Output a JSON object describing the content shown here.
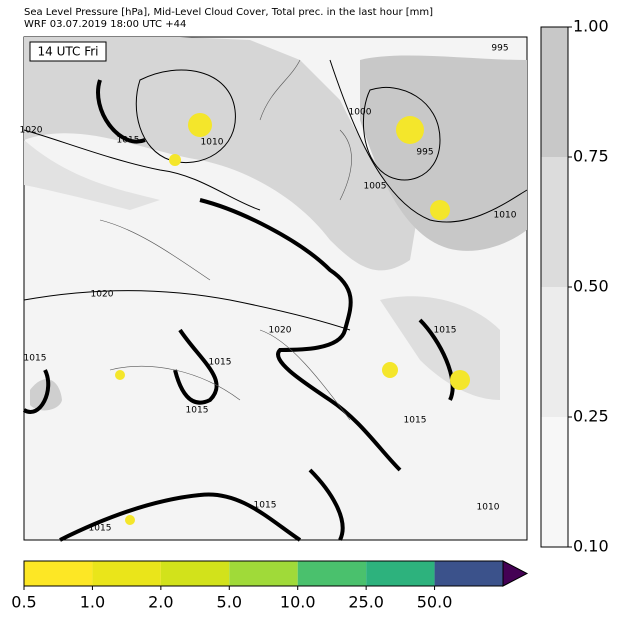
{
  "header": {
    "line1": "Sea Level Pressure [hPa], Mid-Level Cloud Cover, Total prec. in the last hour [mm]",
    "line2": "WRF 03.07.2019 18:00 UTC +44"
  },
  "map": {
    "time_label": "14 UTC Fri",
    "isobar_labels": [
      "995",
      "1000",
      "995",
      "1005",
      "1010",
      "1020",
      "1015",
      "1010",
      "1020",
      "1015",
      "1020",
      "1015",
      "1015",
      "1015",
      "1015",
      "1015",
      "1010",
      "1015"
    ]
  },
  "cloud_colorbar": {
    "ticks": [
      "1.00",
      "0.75",
      "0.50",
      "0.25",
      "0.10"
    ],
    "colors": [
      "#c8c8c8",
      "#dcdcdc",
      "#ececec",
      "#f7f7f7"
    ]
  },
  "precip_colorbar": {
    "ticks": [
      "0.5",
      "1.0",
      "2.0",
      "5.0",
      "10.0",
      "25.0",
      "50.0"
    ],
    "colors": [
      "#fde725",
      "#eae51a",
      "#d2e21b",
      "#a0da39",
      "#4ac16d",
      "#2db27d",
      "#3b528b"
    ],
    "extend_color": "#440154"
  }
}
